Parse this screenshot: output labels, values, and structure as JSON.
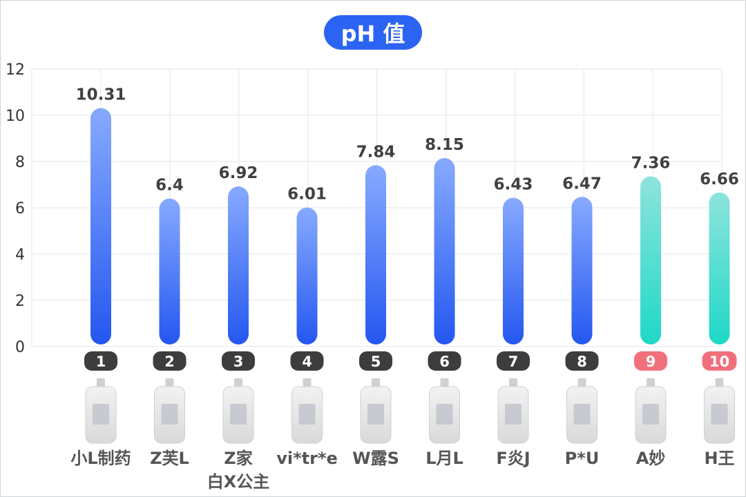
{
  "title": "pH 值",
  "chart_data": {
    "type": "bar",
    "title": "pH 值",
    "ylim": [
      0,
      12
    ],
    "y_ticks": [
      "0",
      "2",
      "4",
      "6",
      "8",
      "10",
      "12"
    ],
    "categories": [
      "小L制药",
      "Z芙L",
      "Z家白X公主",
      "vi*tr*e",
      "W露S",
      "L月L",
      "F炎J",
      "P*U",
      "A妙",
      "H王"
    ],
    "category_lines": [
      [
        "小L制药"
      ],
      [
        "Z芙L"
      ],
      [
        "Z家",
        "白X公主"
      ],
      [
        "vi*tr*e"
      ],
      [
        "W露S"
      ],
      [
        "L月L"
      ],
      [
        "F炎J"
      ],
      [
        "P*U"
      ],
      [
        "A妙"
      ],
      [
        "H王"
      ]
    ],
    "ranks": [
      "1",
      "2",
      "3",
      "4",
      "5",
      "6",
      "7",
      "8",
      "9",
      "10"
    ],
    "values": [
      10.31,
      6.4,
      6.92,
      6.01,
      7.84,
      8.15,
      6.43,
      6.47,
      7.36,
      6.66
    ],
    "value_labels": [
      "10.31",
      "6.4",
      "6.92",
      "6.01",
      "7.84",
      "8.15",
      "6.43",
      "6.47",
      "7.36",
      "6.66"
    ],
    "bar_colors": [
      "blue",
      "blue",
      "blue",
      "blue",
      "blue",
      "blue",
      "blue",
      "blue",
      "teal",
      "teal"
    ],
    "rank_badge_colors": [
      "#3d3d3d",
      "#3d3d3d",
      "#3d3d3d",
      "#3d3d3d",
      "#3d3d3d",
      "#3d3d3d",
      "#3d3d3d",
      "#3d3d3d",
      "#f2707c",
      "#f2707c"
    ],
    "grid": true,
    "legend": "none"
  },
  "colors": {
    "title_bg": "#2b63f2",
    "blue_bar_top": "#87aaff",
    "blue_bar_bottom": "#2457f0",
    "teal_bar_top": "#8ee4dc",
    "teal_bar_bottom": "#1ed8c8"
  }
}
